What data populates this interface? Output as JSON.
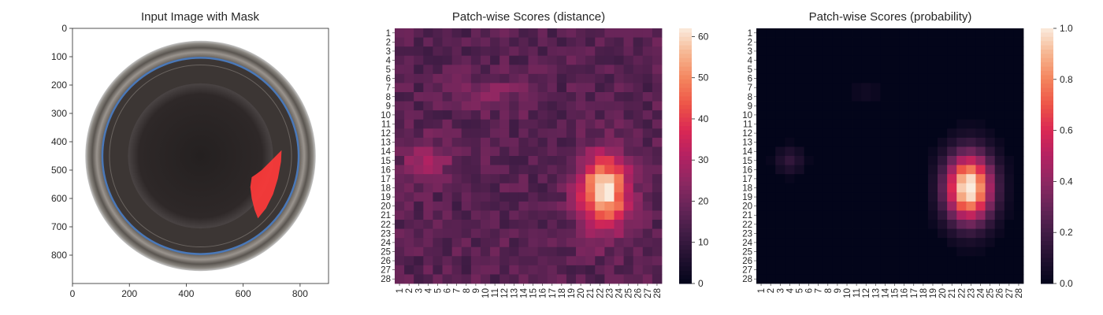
{
  "chart_data": [
    {
      "type": "image",
      "title": "Input Image with Mask",
      "xlim": [
        0,
        900
      ],
      "ylim": [
        900,
        0
      ],
      "xticks": [
        0,
        200,
        400,
        600,
        800
      ],
      "yticks": [
        0,
        100,
        200,
        300,
        400,
        500,
        600,
        700,
        800
      ],
      "bowl": {
        "center": [
          450,
          450
        ],
        "outer_radius": 405,
        "rim_radius": 345,
        "inner_radius": 255,
        "background_color": "#ffffff",
        "ring_color": "#5a5550",
        "rim_color": "#4a78b8",
        "interior_color": "#2a2424"
      },
      "mask": {
        "color": "#ff3a3a",
        "polygon": [
          [
            735,
            430
          ],
          [
            715,
            450
          ],
          [
            690,
            475
          ],
          [
            665,
            500
          ],
          [
            645,
            515
          ],
          [
            630,
            525
          ],
          [
            625,
            560
          ],
          [
            630,
            600
          ],
          [
            640,
            640
          ],
          [
            652,
            670
          ],
          [
            680,
            635
          ],
          [
            705,
            585
          ],
          [
            722,
            530
          ],
          [
            733,
            470
          ]
        ]
      }
    },
    {
      "type": "heatmap",
      "title": "Patch-wise Scores (distance)",
      "rows": 28,
      "cols": 28,
      "tick_labels": [
        "1",
        "2",
        "3",
        "4",
        "5",
        "6",
        "7",
        "8",
        "9",
        "10",
        "11",
        "12",
        "13",
        "14",
        "15",
        "16",
        "17",
        "18",
        "19",
        "20",
        "21",
        "22",
        "23",
        "24",
        "25",
        "26",
        "27",
        "28"
      ],
      "colormap": "rocket",
      "vmin": 0,
      "vmax": 62,
      "colorbar_ticks": [
        0,
        10,
        20,
        30,
        40,
        50,
        60
      ],
      "base": 16,
      "blobs": [
        {
          "row": 18.5,
          "col": 22.5,
          "sigma_row": 2.8,
          "sigma_col": 1.8,
          "peak": 46
        },
        {
          "row": 15,
          "col": 3.8,
          "sigma_row": 1.5,
          "sigma_col": 1.6,
          "peak": 14
        },
        {
          "row": 7.5,
          "col": 11,
          "sigma_row": 1.5,
          "sigma_col": 2.5,
          "peak": 6
        }
      ]
    },
    {
      "type": "heatmap",
      "title": "Patch-wise Scores (probability)",
      "rows": 28,
      "cols": 28,
      "tick_labels": [
        "1",
        "2",
        "3",
        "4",
        "5",
        "6",
        "7",
        "8",
        "9",
        "10",
        "11",
        "12",
        "13",
        "14",
        "15",
        "16",
        "17",
        "18",
        "19",
        "20",
        "21",
        "22",
        "23",
        "24",
        "25",
        "26",
        "27",
        "28"
      ],
      "colormap": "rocket",
      "vmin": 0,
      "vmax": 1,
      "colorbar_ticks": [
        0.0,
        0.2,
        0.4,
        0.6,
        0.8,
        1.0
      ],
      "base": 0,
      "blobs": [
        {
          "row": 18,
          "col": 22.8,
          "sigma_row": 2.6,
          "sigma_col": 1.7,
          "peak": 1.05
        },
        {
          "row": 15,
          "col": 4,
          "sigma_row": 1.0,
          "sigma_col": 1.0,
          "peak": 0.15
        },
        {
          "row": 7.5,
          "col": 12,
          "sigma_row": 0.8,
          "sigma_col": 1.2,
          "peak": 0.05
        }
      ]
    }
  ]
}
